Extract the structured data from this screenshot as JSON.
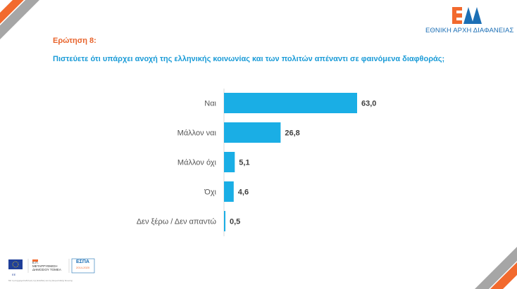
{
  "header": {
    "question_label": "Ερώτηση 8:",
    "question_text": "Πιστεύετε ότι υπάρχει ανοχή της ελληνικής κοινωνίας και των πολιτών απέναντι σε φαινόμενα διαφθοράς;",
    "logo_mark": "ΕΑΔ",
    "logo_text": "ΕΘΝΙΚΗ ΑΡΧΗ ΔΙΑΦΑΝΕΙΑΣ"
  },
  "colors": {
    "bar": "#1aaee5",
    "orange": "#f26a2e",
    "grey": "#a6a6a6",
    "logo": "#1c6fb5"
  },
  "chart_data": {
    "type": "bar",
    "orientation": "horizontal",
    "title": "",
    "categories": [
      "Ναι",
      "Μάλλον ναι",
      "Μάλλον όχι",
      "Όχι",
      "Δεν ξέρω / Δεν απαντώ"
    ],
    "values": [
      63.0,
      26.8,
      5.1,
      4.6,
      0.5
    ],
    "value_labels": [
      "63,0",
      "26,8",
      "5,1",
      "4,6",
      "0,5"
    ],
    "xlim": [
      0,
      70
    ],
    "grid": false
  },
  "footer": {
    "eu_label": "ΕΕ",
    "program_label": "Ε.Π. ΜΕΤΑΡΡΥΘΜΙΣΗ ΔΗΜΟΣΙΟΥ ΤΟΜΕΑ",
    "espa_label": "ΕΣΠΑ",
    "espa_years": "2014-2020",
    "note": "Με τη συγχρηματοδότηση της Ελλάδας και της Ευρωπαϊκής Ένωσης"
  }
}
